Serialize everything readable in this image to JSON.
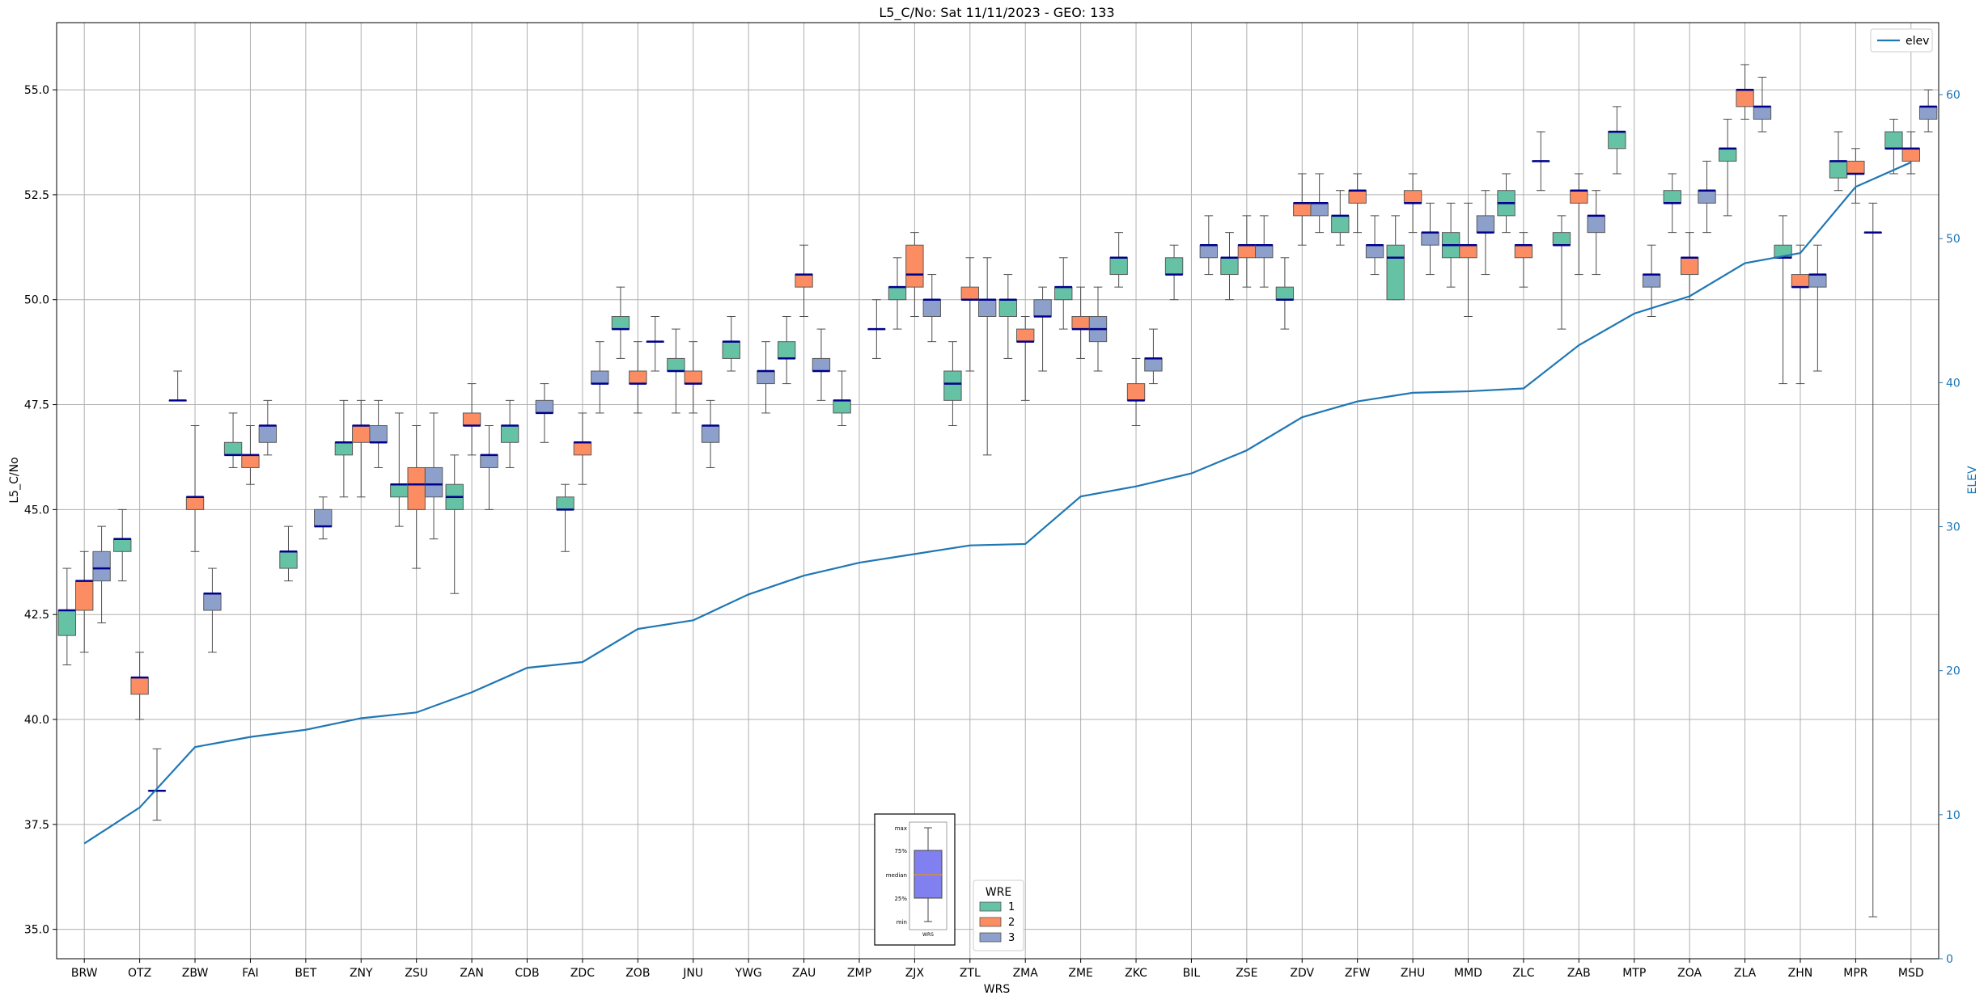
{
  "chart_data": {
    "type": "boxplot",
    "title": "L5_C/No: Sat 11/11/2023 - GEO: 133",
    "xlabel": "WRS",
    "ylabel": "L5_C/No",
    "y2label": "ELEV",
    "ylim": [
      34.3,
      56.6
    ],
    "y2lim": [
      0,
      65
    ],
    "yticks": [
      "35.0",
      "37.5",
      "40.0",
      "42.5",
      "45.0",
      "47.5",
      "50.0",
      "52.5",
      "55.0"
    ],
    "y2ticks": [
      "0",
      "10",
      "20",
      "30",
      "40",
      "50",
      "60"
    ],
    "grid": true,
    "legend_placement": "top-right",
    "legend_wre_title": "WRE",
    "inset_labels": [
      "max",
      "75%",
      "median",
      "25%",
      "min",
      "WRS"
    ],
    "categories": [
      "BRW",
      "OTZ",
      "ZBW",
      "FAI",
      "BET",
      "ZNY",
      "ZSU",
      "ZAN",
      "CDB",
      "ZDC",
      "ZOB",
      "JNU",
      "YWG",
      "ZAU",
      "ZMP",
      "ZJX",
      "ZTL",
      "ZMA",
      "ZME",
      "ZKC",
      "BIL",
      "ZSE",
      "ZDV",
      "ZFW",
      "ZHU",
      "MMD",
      "ZLC",
      "ZAB",
      "MTP",
      "ZOA",
      "ZLA",
      "ZHN",
      "MPR",
      "MSD"
    ],
    "series": [
      {
        "name": "1",
        "color": "#66c2a5",
        "boxes": [
          [
            41.3,
            42.0,
            42.6,
            42.6,
            43.6
          ],
          [
            43.3,
            44.0,
            44.3,
            44.3,
            45.0
          ],
          [
            47.6,
            47.6,
            47.6,
            47.6,
            48.3
          ],
          [
            46.0,
            46.3,
            46.3,
            46.6,
            47.3
          ],
          [
            43.3,
            43.6,
            44.0,
            44.0,
            44.6
          ],
          [
            45.3,
            46.3,
            46.6,
            46.6,
            47.6
          ],
          [
            44.6,
            45.3,
            45.6,
            45.6,
            47.3
          ],
          [
            43.0,
            45.0,
            45.3,
            45.6,
            46.3
          ],
          [
            46.0,
            46.6,
            47.0,
            47.0,
            47.6
          ],
          [
            44.0,
            45.0,
            45.0,
            45.3,
            45.6
          ],
          [
            48.6,
            49.3,
            49.3,
            49.6,
            50.3
          ],
          [
            47.3,
            48.3,
            48.3,
            48.6,
            49.3
          ],
          [
            48.3,
            48.6,
            49.0,
            49.0,
            49.6
          ],
          [
            48.0,
            48.6,
            48.6,
            49.0,
            49.6
          ],
          [
            47.0,
            47.3,
            47.6,
            47.6,
            48.3
          ],
          [
            49.3,
            50.0,
            50.3,
            50.3,
            51.0
          ],
          [
            47.0,
            47.6,
            48.0,
            48.3,
            49.0
          ],
          [
            48.6,
            49.6,
            50.0,
            50.0,
            50.6
          ],
          [
            49.3,
            50.0,
            50.3,
            50.3,
            51.0
          ],
          [
            50.3,
            50.6,
            51.0,
            51.0,
            51.6
          ],
          [
            50.0,
            50.6,
            50.6,
            51.0,
            51.3
          ],
          [
            50.0,
            50.6,
            51.0,
            51.0,
            51.6
          ],
          [
            49.3,
            50.0,
            50.0,
            50.3,
            51.0
          ],
          [
            51.3,
            51.6,
            52.0,
            52.0,
            52.6
          ],
          [
            50.0,
            50.0,
            51.0,
            51.3,
            52.0
          ],
          [
            50.3,
            51.0,
            51.3,
            51.6,
            52.3
          ],
          [
            51.6,
            52.0,
            52.3,
            52.6,
            53.0
          ],
          [
            49.3,
            51.3,
            51.3,
            51.6,
            52.0
          ],
          [
            53.0,
            53.6,
            54.0,
            54.0,
            54.6
          ],
          [
            51.6,
            52.3,
            52.3,
            52.6,
            53.0
          ],
          [
            52.0,
            53.3,
            53.6,
            53.6,
            54.3
          ],
          [
            48.0,
            51.0,
            51.0,
            51.3,
            52.0
          ],
          [
            52.6,
            52.9,
            53.3,
            53.3,
            54.0
          ],
          [
            53.0,
            53.6,
            53.6,
            54.0,
            54.3
          ]
        ]
      },
      {
        "name": "2",
        "color": "#fc8d62",
        "boxes": [
          [
            41.6,
            42.6,
            43.3,
            43.3,
            44.0
          ],
          [
            40.0,
            40.6,
            41.0,
            41.0,
            41.6
          ],
          [
            44.0,
            45.0,
            45.3,
            45.3,
            47.0
          ],
          [
            45.6,
            46.0,
            46.3,
            46.3,
            47.0
          ],
          null,
          [
            45.3,
            46.6,
            47.0,
            47.0,
            47.6
          ],
          [
            43.6,
            45.0,
            45.6,
            46.0,
            47.0
          ],
          [
            46.3,
            47.0,
            47.0,
            47.3,
            48.0
          ],
          null,
          [
            45.6,
            46.3,
            46.6,
            46.6,
            47.3
          ],
          [
            47.3,
            48.0,
            48.0,
            48.3,
            49.0
          ],
          [
            47.3,
            48.0,
            48.0,
            48.3,
            49.0
          ],
          null,
          [
            49.6,
            50.3,
            50.6,
            50.6,
            51.3
          ],
          null,
          [
            49.6,
            50.3,
            50.6,
            51.3,
            51.6
          ],
          [
            48.3,
            50.0,
            50.0,
            50.3,
            51.0
          ],
          [
            47.6,
            49.0,
            49.0,
            49.3,
            49.6
          ],
          [
            48.6,
            49.3,
            49.3,
            49.6,
            50.3
          ],
          [
            47.0,
            47.6,
            47.6,
            48.0,
            48.6
          ],
          null,
          [
            50.3,
            51.0,
            51.3,
            51.3,
            52.0
          ],
          [
            51.3,
            52.0,
            52.3,
            52.3,
            53.0
          ],
          [
            51.6,
            52.3,
            52.6,
            52.6,
            53.0
          ],
          [
            51.6,
            52.3,
            52.3,
            52.6,
            53.0
          ],
          [
            49.6,
            51.0,
            51.3,
            51.3,
            52.3
          ],
          [
            50.3,
            51.0,
            51.3,
            51.3,
            51.6
          ],
          [
            50.6,
            52.3,
            52.6,
            52.6,
            53.0
          ],
          null,
          [
            50.0,
            50.6,
            51.0,
            51.0,
            51.6
          ],
          [
            54.3,
            54.6,
            55.0,
            55.0,
            55.6
          ],
          [
            48.0,
            50.3,
            50.3,
            50.6,
            51.3
          ],
          [
            52.3,
            53.0,
            53.0,
            53.3,
            53.6
          ],
          [
            53.0,
            53.3,
            53.6,
            53.6,
            54.0
          ]
        ]
      },
      {
        "name": "3",
        "color": "#8da0cb",
        "boxes": [
          [
            42.3,
            43.3,
            43.6,
            44.0,
            44.6
          ],
          [
            37.6,
            38.3,
            38.3,
            38.3,
            39.3
          ],
          [
            41.6,
            42.6,
            43.0,
            43.0,
            43.6
          ],
          [
            46.3,
            46.6,
            47.0,
            47.0,
            47.6
          ],
          [
            44.3,
            44.6,
            44.6,
            45.0,
            45.3
          ],
          [
            46.0,
            46.6,
            46.6,
            47.0,
            47.6
          ],
          [
            44.3,
            45.3,
            45.6,
            46.0,
            47.3
          ],
          [
            45.0,
            46.0,
            46.3,
            46.3,
            47.0
          ],
          [
            46.6,
            47.3,
            47.3,
            47.6,
            48.0
          ],
          [
            47.3,
            48.0,
            48.0,
            48.3,
            49.0
          ],
          [
            48.3,
            49.0,
            49.0,
            49.0,
            49.6
          ],
          [
            46.0,
            46.6,
            47.0,
            47.0,
            47.6
          ],
          [
            47.3,
            48.0,
            48.3,
            48.3,
            49.0
          ],
          [
            47.6,
            48.3,
            48.3,
            48.6,
            49.3
          ],
          [
            48.6,
            49.3,
            49.3,
            49.3,
            50.0
          ],
          [
            49.0,
            49.6,
            50.0,
            50.0,
            50.6
          ],
          [
            46.3,
            49.6,
            50.0,
            50.0,
            51.0
          ],
          [
            48.3,
            49.6,
            49.6,
            50.0,
            50.3
          ],
          [
            48.3,
            49.0,
            49.3,
            49.6,
            50.3
          ],
          [
            48.0,
            48.3,
            48.6,
            48.6,
            49.3
          ],
          [
            50.6,
            51.0,
            51.3,
            51.3,
            52.0
          ],
          [
            50.3,
            51.0,
            51.3,
            51.3,
            52.0
          ],
          [
            51.6,
            52.0,
            52.3,
            52.3,
            53.0
          ],
          [
            50.6,
            51.0,
            51.3,
            51.3,
            52.0
          ],
          [
            50.6,
            51.3,
            51.6,
            51.6,
            52.3
          ],
          [
            50.6,
            51.6,
            51.6,
            52.0,
            52.6
          ],
          [
            52.6,
            53.3,
            53.3,
            53.3,
            54.0
          ],
          [
            50.6,
            51.6,
            52.0,
            52.0,
            52.6
          ],
          [
            49.6,
            50.3,
            50.6,
            50.6,
            51.3
          ],
          [
            51.6,
            52.3,
            52.6,
            52.6,
            53.3
          ],
          [
            54.0,
            54.3,
            54.6,
            54.6,
            55.3
          ],
          [
            48.3,
            50.3,
            50.6,
            50.6,
            51.3
          ],
          [
            35.3,
            51.6,
            51.6,
            51.6,
            52.3
          ],
          [
            54.0,
            54.3,
            54.6,
            54.6,
            55.0
          ]
        ]
      }
    ],
    "line_series": {
      "name": "elev",
      "color": "#1f77b4",
      "axis": "right",
      "values": [
        8.0,
        10.5,
        14.7,
        15.4,
        15.9,
        16.7,
        17.1,
        18.5,
        20.2,
        20.6,
        22.9,
        23.5,
        25.3,
        26.6,
        27.5,
        28.1,
        28.7,
        28.8,
        32.1,
        32.8,
        33.7,
        35.3,
        37.6,
        38.7,
        39.3,
        39.4,
        39.6,
        42.6,
        44.8,
        46.0,
        48.3,
        49.0,
        53.6,
        55.3
      ]
    }
  }
}
